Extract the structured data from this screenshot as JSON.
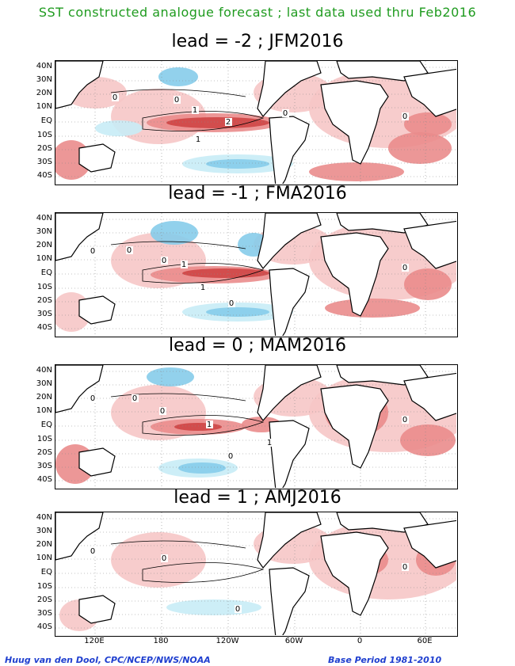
{
  "header": {
    "title": "SST constructed analogue forecast ; last data used thru Feb2016"
  },
  "lat_ticks": [
    "40N",
    "30N",
    "20N",
    "10N",
    "EQ",
    "10S",
    "20S",
    "30S",
    "40S"
  ],
  "lon_ticks": [
    "120E",
    "180",
    "120W",
    "60W",
    "0",
    "60E"
  ],
  "panels": [
    {
      "title": "lead = -2 ; JFM2016",
      "contour_labels": [
        "0",
        "0",
        "1",
        "2",
        "1",
        "0",
        "0"
      ]
    },
    {
      "title": "lead = -1 ; FMA2016",
      "contour_labels": [
        "0",
        "0",
        "1",
        "1",
        "0",
        "0",
        "0"
      ]
    },
    {
      "title": "lead = 0 ; MAM2016",
      "contour_labels": [
        "0",
        "0",
        "1",
        "1",
        "0",
        "0",
        "0"
      ]
    },
    {
      "title": "lead = 1 ; AMJ2016",
      "contour_labels": [
        "0",
        "0",
        "0",
        "0"
      ]
    }
  ],
  "footer": {
    "credit": "Huug van den Dool, CPC/NCEP/NWS/NOAA",
    "base_period": "Base Period 1981-2010"
  },
  "colors": {
    "warm_light": "#f6c6c6",
    "warm_mid": "#ea8c8c",
    "warm_strong": "#cf4545",
    "cool_light": "#c8ecf6",
    "cool_mid": "#86ccea",
    "land": "#ffffff",
    "coast": "#000000"
  }
}
